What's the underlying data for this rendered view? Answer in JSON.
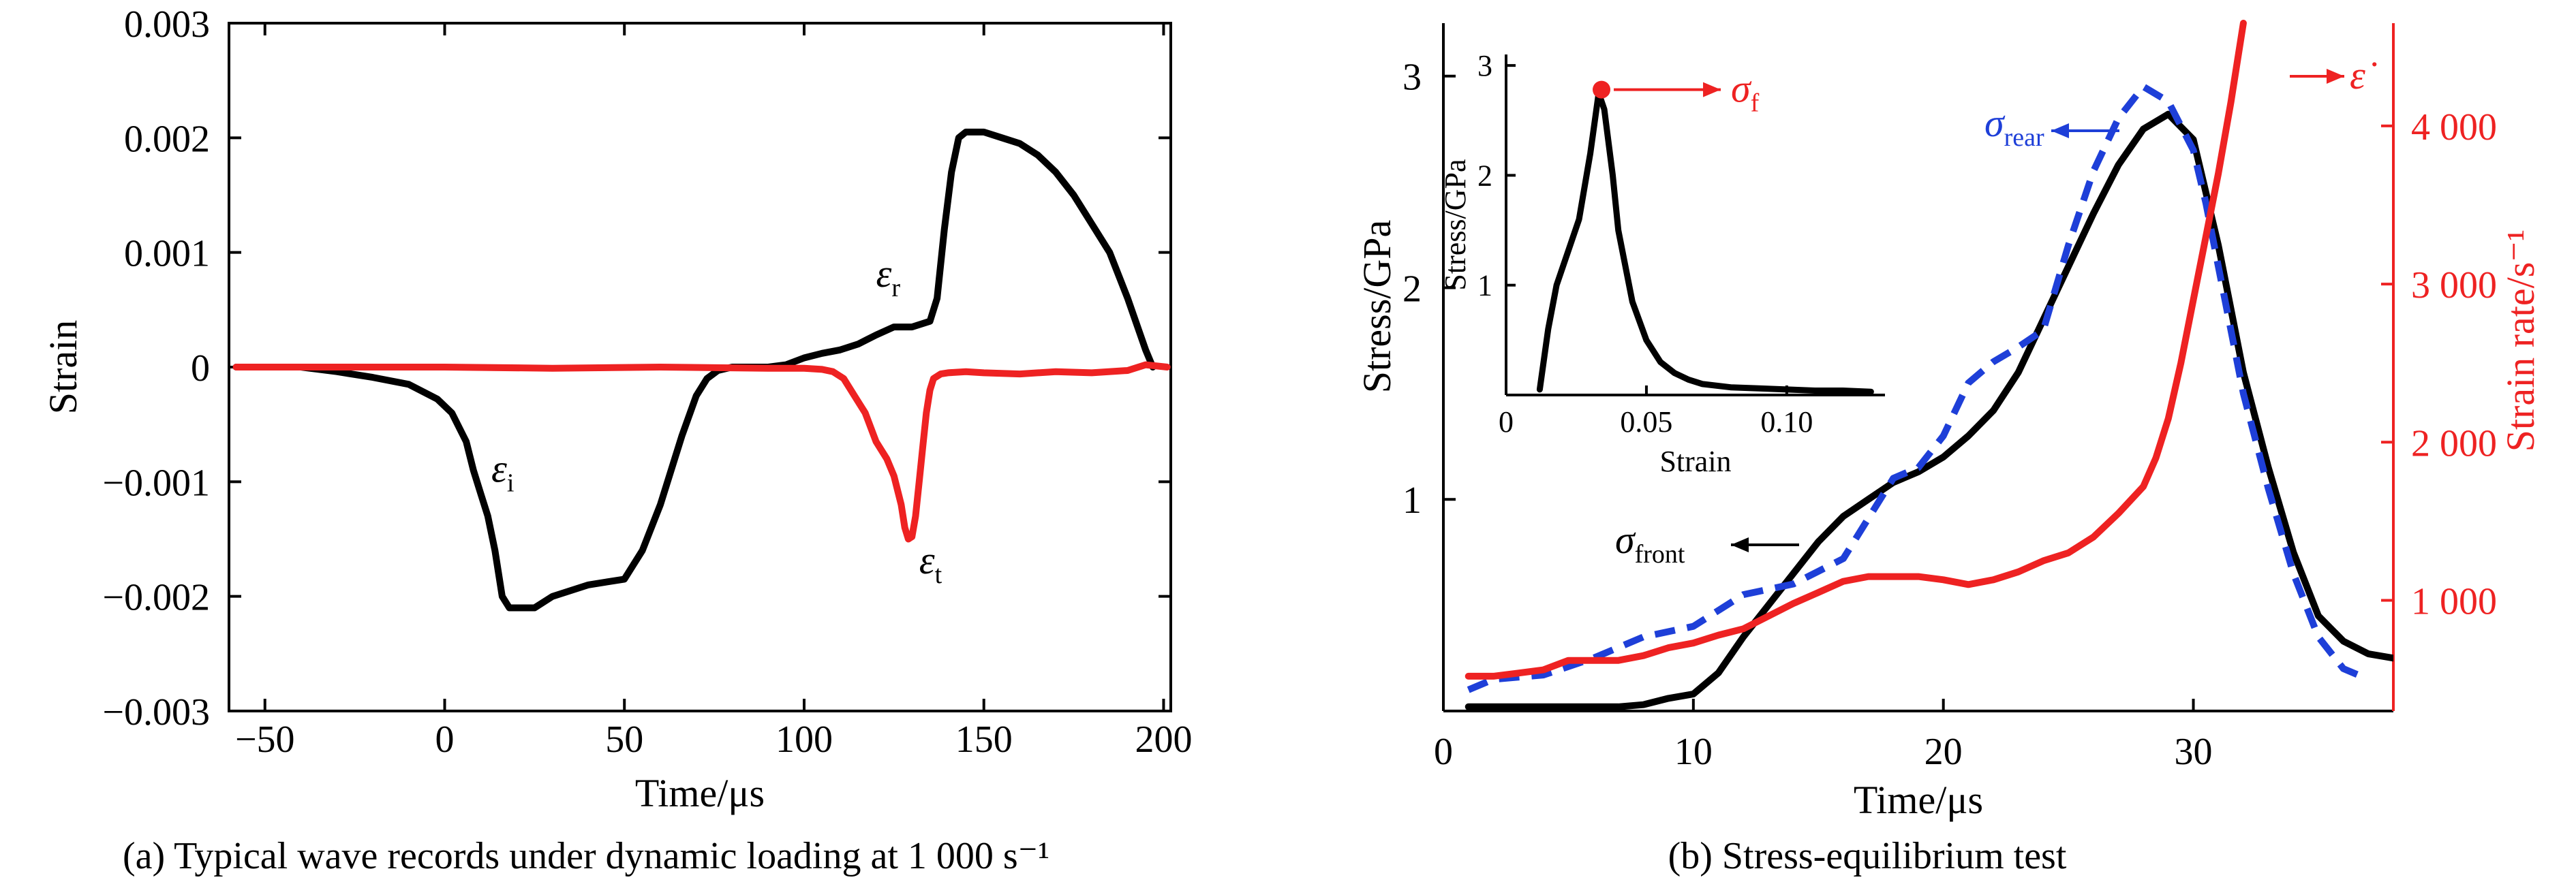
{
  "captions": {
    "a": "(a) Typical wave records under dynamic loading at 1 000 s⁻¹",
    "b": "(b) Stress-equilibrium test"
  },
  "colors": {
    "black": "#000000",
    "red": "#ee2222",
    "blue": "#1e3fd8"
  },
  "chart_data": [
    {
      "id": "a",
      "type": "line",
      "xlabel": "Time/μs",
      "ylabel": "Strain",
      "xlim": [
        -60,
        202
      ],
      "ylim": [
        -0.003,
        0.003
      ],
      "xticks": [
        -50,
        0,
        50,
        100,
        150,
        200
      ],
      "xtick_labels": [
        "−50",
        "0",
        "50",
        "100",
        "150",
        "200"
      ],
      "yticks": [
        -0.003,
        -0.002,
        -0.001,
        0,
        0.001,
        0.002,
        0.003
      ],
      "ytick_labels": [
        "−0.003",
        "−0.002",
        "−0.001",
        "0",
        "0.001",
        "0.002",
        "0.003"
      ],
      "grid": false,
      "series": [
        {
          "color": "black",
          "x": [
            -58,
            -40,
            -30,
            -20,
            -10,
            -2,
            2,
            6,
            8,
            10,
            12,
            14,
            16,
            18,
            20,
            25,
            30,
            40,
            50,
            55,
            60,
            63,
            66,
            70,
            73,
            76,
            80,
            90,
            95,
            100,
            105,
            110,
            115,
            120,
            125,
            130,
            135,
            137,
            139,
            141,
            143,
            145,
            150,
            155,
            160,
            165,
            170,
            175,
            180,
            185,
            190,
            195,
            197
          ],
          "y": [
            0,
            0,
            -4e-05,
            -9e-05,
            -0.00015,
            -0.00028,
            -0.0004,
            -0.00065,
            -0.0009,
            -0.0011,
            -0.0013,
            -0.0016,
            -0.002,
            -0.0021,
            -0.0021,
            -0.0021,
            -0.002,
            -0.0019,
            -0.00185,
            -0.0016,
            -0.0012,
            -0.0009,
            -0.0006,
            -0.00025,
            -0.0001,
            -3e-05,
            0,
            0,
            2e-05,
            8e-05,
            0.00012,
            0.00015,
            0.0002,
            0.00028,
            0.00035,
            0.00035,
            0.0004,
            0.0006,
            0.0012,
            0.0017,
            0.002,
            0.00205,
            0.00205,
            0.002,
            0.00195,
            0.00185,
            0.0017,
            0.0015,
            0.00125,
            0.001,
            0.0006,
            0.00015,
            0
          ]
        },
        {
          "color": "red",
          "x": [
            -58,
            -30,
            0,
            30,
            60,
            90,
            100,
            105,
            108,
            111,
            114,
            117,
            120,
            123,
            125,
            127,
            128,
            129,
            130,
            131,
            132,
            133,
            134,
            135,
            136,
            138,
            140,
            145,
            150,
            160,
            170,
            180,
            190,
            195,
            201
          ],
          "y": [
            0,
            0,
            0,
            -1e-05,
            0,
            -1e-05,
            -1e-05,
            -2e-05,
            -4e-05,
            -0.0001,
            -0.00025,
            -0.0004,
            -0.00065,
            -0.0008,
            -0.00095,
            -0.0012,
            -0.0014,
            -0.0015,
            -0.00148,
            -0.0013,
            -0.001,
            -0.0007,
            -0.0004,
            -0.0002,
            -0.0001,
            -6e-05,
            -5e-05,
            -4e-05,
            -5e-05,
            -6e-05,
            -4e-05,
            -5e-05,
            -3e-05,
            2e-05,
            0
          ]
        }
      ],
      "annotations": [
        {
          "text": "ε",
          "sub": "i",
          "x": 13,
          "y": -0.001
        },
        {
          "text": "ε",
          "sub": "r",
          "x": 120,
          "y": 0.0007
        },
        {
          "text": "ε",
          "sub": "t",
          "x": 132,
          "y": -0.0018
        }
      ]
    },
    {
      "id": "b",
      "type": "line",
      "xlabel": "Time/μs",
      "ylabel": "Stress/GPa",
      "y2label": "Strain rate/s⁻¹",
      "xlim": [
        0,
        38
      ],
      "ylim": [
        0,
        3.25
      ],
      "y2lim": [
        300,
        4650
      ],
      "xticks": [
        0,
        10,
        20,
        30
      ],
      "xtick_labels": [
        "0",
        "10",
        "20",
        "30"
      ],
      "yticks": [
        1,
        2,
        3
      ],
      "ytick_labels": [
        "1",
        "2",
        "3"
      ],
      "y2ticks": [
        1000,
        2000,
        3000,
        4000
      ],
      "y2tick_labels": [
        "1 000",
        "2 000",
        "3 000",
        "4 000"
      ],
      "grid": false,
      "series": [
        {
          "name": "σfront",
          "color": "black",
          "style": "solid",
          "x": [
            1,
            4,
            7,
            8,
            9,
            10,
            11,
            12,
            13,
            14,
            15,
            16,
            17,
            18,
            19,
            20,
            21,
            22,
            23,
            24,
            25,
            26,
            27,
            28,
            29,
            30,
            30.5,
            31,
            31.5,
            32,
            33,
            34,
            35,
            36,
            37,
            38
          ],
          "y": [
            0.02,
            0.02,
            0.02,
            0.03,
            0.06,
            0.08,
            0.18,
            0.35,
            0.5,
            0.65,
            0.8,
            0.92,
            1.0,
            1.08,
            1.13,
            1.2,
            1.3,
            1.42,
            1.6,
            1.85,
            2.1,
            2.35,
            2.58,
            2.75,
            2.82,
            2.7,
            2.45,
            2.2,
            1.9,
            1.6,
            1.15,
            0.75,
            0.45,
            0.33,
            0.27,
            0.25
          ]
        },
        {
          "name": "σrear",
          "color": "blue",
          "style": "dashed",
          "x": [
            1,
            2,
            4,
            6,
            8,
            10,
            12,
            14,
            16,
            18,
            19,
            20,
            21,
            22,
            23,
            24,
            25,
            26,
            27,
            28,
            29,
            30,
            30.5,
            31,
            31.5,
            32,
            33,
            34,
            35,
            36,
            37
          ],
          "y": [
            0.1,
            0.15,
            0.17,
            0.25,
            0.35,
            0.4,
            0.55,
            0.6,
            0.72,
            1.1,
            1.15,
            1.3,
            1.55,
            1.65,
            1.72,
            1.8,
            2.2,
            2.55,
            2.8,
            2.95,
            2.88,
            2.65,
            2.4,
            2.1,
            1.8,
            1.5,
            1.05,
            0.65,
            0.35,
            0.2,
            0.15
          ]
        },
        {
          "name": "ε̇",
          "color": "red",
          "style": "solid",
          "axis": "y2",
          "x": [
            1,
            2,
            3,
            4,
            5,
            6,
            7,
            8,
            9,
            10,
            11,
            12,
            13,
            14,
            15,
            16,
            17,
            18,
            19,
            20,
            21,
            22,
            23,
            24,
            25,
            26,
            27,
            28,
            28.5,
            29,
            29.5,
            30,
            30.5,
            31,
            31.5,
            32
          ],
          "y": [
            520,
            520,
            540,
            560,
            620,
            620,
            620,
            650,
            700,
            730,
            780,
            820,
            900,
            980,
            1050,
            1120,
            1150,
            1150,
            1150,
            1130,
            1100,
            1130,
            1180,
            1250,
            1300,
            1400,
            1550,
            1720,
            1900,
            2150,
            2500,
            2900,
            3300,
            3700,
            4150,
            4650
          ]
        }
      ],
      "annotations": [
        {
          "text": "σ",
          "sub": "front",
          "target": "black"
        },
        {
          "text": "σ",
          "sub": "rear",
          "target": "blue"
        },
        {
          "text": "ε̇",
          "target": "red"
        }
      ],
      "inset": {
        "type": "line",
        "xlabel": "Strain",
        "ylabel": "Stress/GPa",
        "xlim": [
          0,
          0.135
        ],
        "ylim": [
          0,
          3.1
        ],
        "xticks": [
          0,
          0.05,
          0.1
        ],
        "xtick_labels": [
          "0",
          "0.05",
          "0.10"
        ],
        "yticks": [
          1,
          2,
          3
        ],
        "ytick_labels": [
          "1",
          "2",
          "3"
        ],
        "series": [
          {
            "color": "black",
            "x": [
              0.012,
              0.015,
              0.018,
              0.022,
              0.026,
              0.03,
              0.033,
              0.035,
              0.038,
              0.04,
              0.045,
              0.05,
              0.055,
              0.06,
              0.065,
              0.07,
              0.08,
              0.09,
              0.1,
              0.11,
              0.12,
              0.13
            ],
            "y": [
              0.05,
              0.6,
              1.0,
              1.3,
              1.6,
              2.2,
              2.75,
              2.6,
              2.0,
              1.5,
              0.85,
              0.5,
              0.3,
              0.2,
              0.14,
              0.1,
              0.07,
              0.06,
              0.05,
              0.04,
              0.04,
              0.03
            ]
          }
        ],
        "marker": {
          "text": "σ",
          "sub": "f",
          "x": 0.034,
          "y": 2.78
        }
      }
    }
  ]
}
